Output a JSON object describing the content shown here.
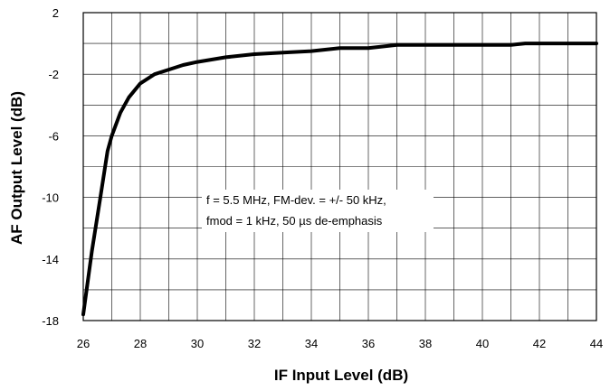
{
  "chart_data": {
    "type": "line",
    "xlabel": "IF Input Level (dB)",
    "ylabel": "AF Output Level (dB)",
    "xlim": [
      26,
      44
    ],
    "ylim": [
      -18,
      2
    ],
    "x_ticks": [
      26,
      28,
      30,
      32,
      34,
      36,
      38,
      40,
      42,
      44
    ],
    "y_ticks": [
      2,
      -2,
      -6,
      -10,
      -14,
      -18
    ],
    "x_grid_step": 1,
    "y_grid_step": 2,
    "grid": true,
    "annotation": [
      "f = 5.5 MHz, FM-dev. = +/- 50 kHz,",
      "fmod = 1 kHz, 50 µs de-emphasis"
    ],
    "series": [
      {
        "color": "#000000",
        "x": [
          26.0,
          26.3,
          26.6,
          26.85,
          27.0,
          27.3,
          27.6,
          28.0,
          28.5,
          29.0,
          29.5,
          30.0,
          31.0,
          32.0,
          33.0,
          34.0,
          35.0,
          36.0,
          36.5,
          37.0,
          38.0,
          39.0,
          40.0,
          41.0,
          41.5,
          42.0,
          43.0,
          44.0
        ],
        "y": [
          -17.6,
          -13.5,
          -10.0,
          -7.0,
          -6.0,
          -4.5,
          -3.5,
          -2.6,
          -2.0,
          -1.7,
          -1.4,
          -1.2,
          -0.9,
          -0.7,
          -0.6,
          -0.5,
          -0.3,
          -0.3,
          -0.2,
          -0.1,
          -0.1,
          -0.1,
          -0.1,
          -0.1,
          0.0,
          0.0,
          0.0,
          0.0
        ]
      }
    ]
  }
}
